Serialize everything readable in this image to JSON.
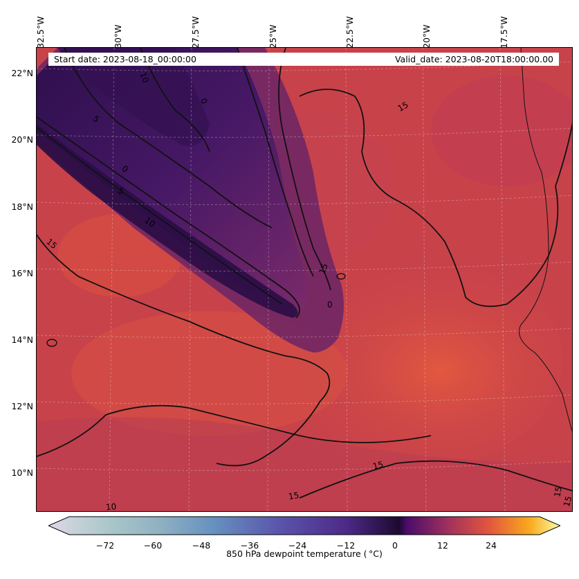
{
  "map": {
    "variable": "850 hPa dewpoint temperature ( °C)",
    "lon_labels": [
      "32.5°W",
      "30°W",
      "27.5°W",
      "25°W",
      "22.5°W",
      "20°W",
      "17.5°W"
    ],
    "lat_labels": [
      "22°N",
      "20°N",
      "18°N",
      "16°N",
      "14°N",
      "12°N",
      "10°N"
    ],
    "start_date": "Start date: 2023-08-18_00:00:00",
    "valid_date": "Valid_date: 2023-08-20T18:00:00.00",
    "contour_labels": [
      "10",
      "5",
      "0",
      "5",
      "10",
      "15",
      "15",
      "15",
      "0",
      "15",
      "15",
      "15",
      "10",
      "15",
      "15",
      "0"
    ],
    "colorbar": {
      "ticks": [
        "−72",
        "−60",
        "−48",
        "−36",
        "−24",
        "−12",
        "0",
        "12",
        "24"
      ],
      "label": "850 hPa dewpoint temperature ( $^\\circ$C)",
      "label_display": "850 hPa dewpoint temperature ( °C)"
    },
    "colors": {
      "background_field": "#c8424a",
      "moist_orange": "#e0553f",
      "dry_purple": "#4a1a6e",
      "very_dry": "#2a0d45",
      "coastline": "#000000"
    }
  }
}
